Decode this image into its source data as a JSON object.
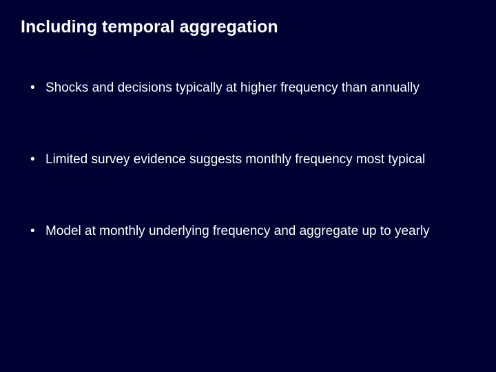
{
  "slide": {
    "background_color": "#000033",
    "text_color": "#ffffff",
    "title": "Including temporal aggregation",
    "title_fontsize": 25,
    "title_fontweight": "bold",
    "bullet_fontsize": 19,
    "bullet_marker": "•",
    "bullets": [
      "Shocks and decisions typically at higher frequency than annually",
      "Limited survey evidence suggests monthly frequency most typical",
      "Model at monthly underlying frequency and aggregate up to yearly"
    ]
  }
}
